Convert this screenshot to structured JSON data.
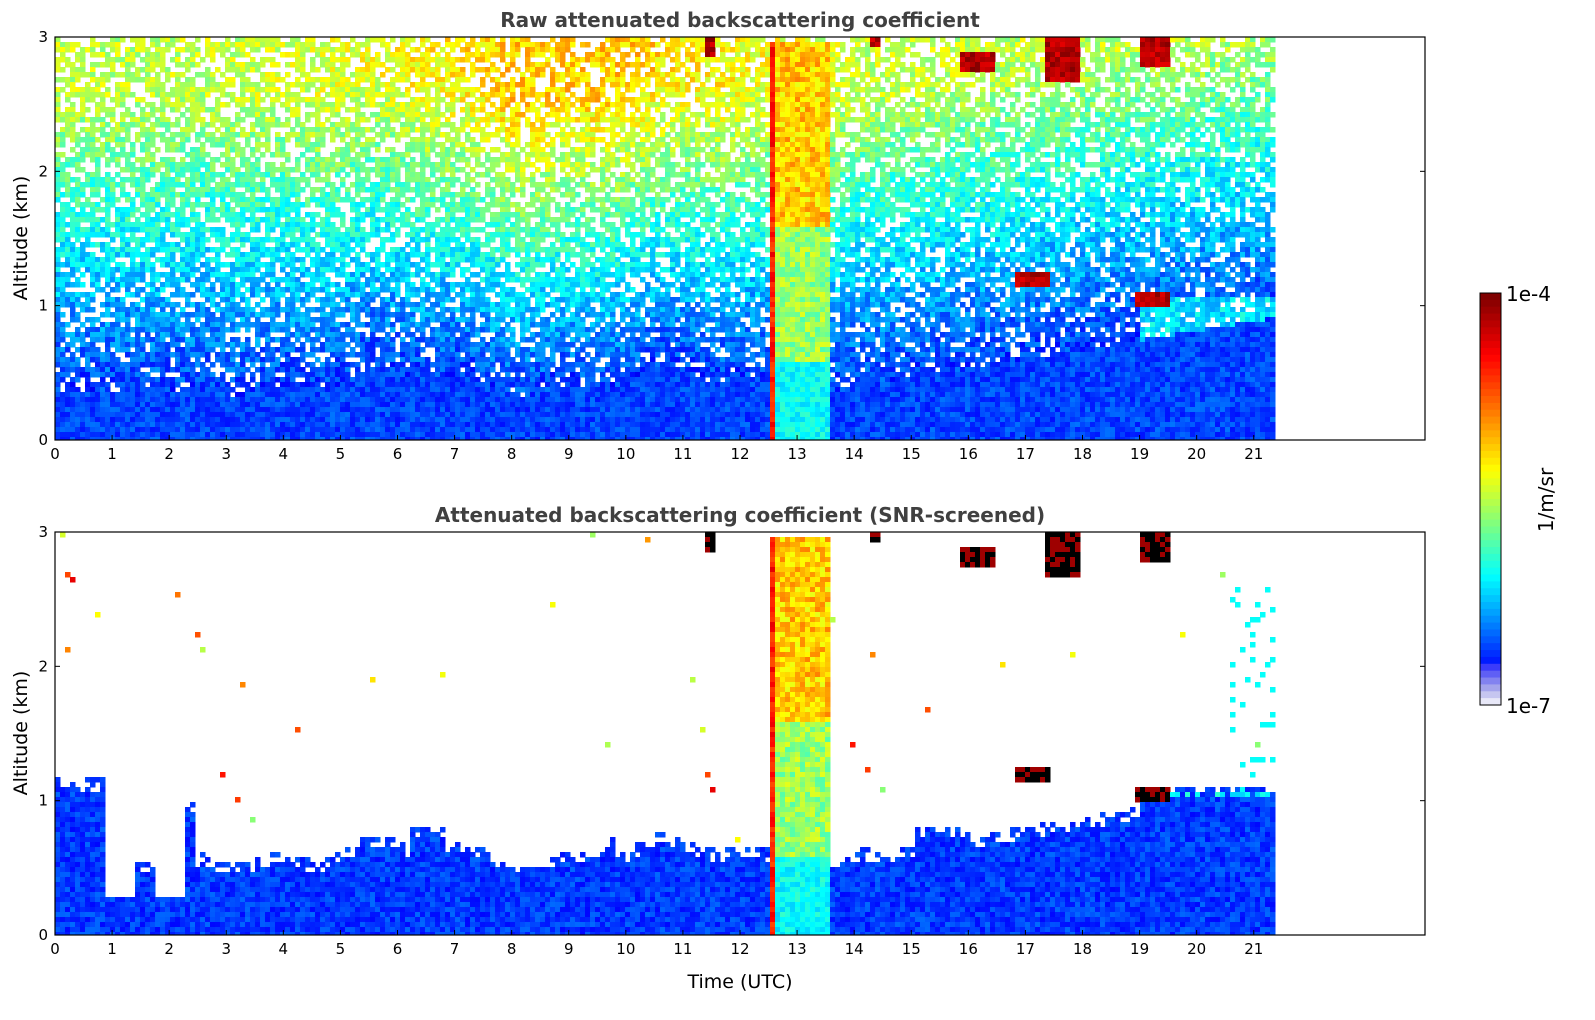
{
  "colors": {
    "jet": [
      "#00007f",
      "#0000ff",
      "#007fff",
      "#00ffff",
      "#7fff7f",
      "#ffff00",
      "#ff7f00",
      "#ff0000",
      "#7f0000"
    ],
    "low_tint": [
      "#e8e8f8",
      "#c6c6f0",
      "#a4a4ec",
      "#8282f0",
      "#5f5ff5",
      "#3b3bfa"
    ]
  },
  "chart_data": [
    {
      "type": "heatmap",
      "title": "Raw attenuated backscattering coefficient",
      "xlabel": "",
      "ylabel": "Altitude (km)",
      "xlim": [
        0,
        24
      ],
      "ylim": [
        0,
        3
      ],
      "data_extent_hours": [
        0,
        21.3
      ],
      "xticks": [
        "0",
        "1",
        "2",
        "3",
        "4",
        "5",
        "6",
        "7",
        "8",
        "9",
        "10",
        "11",
        "12",
        "13",
        "14",
        "15",
        "16",
        "17",
        "18",
        "19",
        "20",
        "21"
      ],
      "yticks": [
        "0",
        "1",
        "2",
        "3"
      ],
      "features": [
        {
          "name": "boundary layer",
          "time": [
            0,
            21.3
          ],
          "top_km": [
            0.3,
            0.6
          ],
          "level": "~1e-6"
        },
        {
          "name": "precipitation / dense plume",
          "time": [
            12.4,
            13.5
          ],
          "altitude": [
            0,
            3
          ],
          "level": "~1e-5 to 5e-5"
        },
        {
          "name": "cloud",
          "time": [
            16.8,
            17.4
          ],
          "altitude": [
            1.15,
            1.25
          ],
          "level": "~1e-4"
        },
        {
          "name": "cloud",
          "time": [
            18.9,
            19.5
          ],
          "altitude": [
            1.0,
            1.1
          ],
          "level": "~1e-4"
        },
        {
          "name": "elevated aerosol layer",
          "time": [
            19.0,
            21.3
          ],
          "altitude": [
            0.7,
            1.1
          ],
          "level": "~3e-6"
        },
        {
          "name": "cirrus",
          "time": [
            17.3,
            17.9
          ],
          "altitude": [
            2.7,
            3.0
          ],
          "level": "~1e-4"
        },
        {
          "name": "cirrus",
          "time": [
            15.8,
            16.4
          ],
          "altitude": [
            2.75,
            2.9
          ],
          "level": "~1e-4"
        },
        {
          "name": "cirrus",
          "time": [
            19.0,
            19.5
          ],
          "altitude": [
            2.8,
            3.0
          ],
          "level": "~1e-4"
        }
      ]
    },
    {
      "type": "heatmap",
      "title": "Attenuated backscattering coefficient (SNR-screened)",
      "xlabel": "Time (UTC)",
      "ylabel": "Altitude (km)",
      "xlim": [
        0,
        24
      ],
      "ylim": [
        0,
        3
      ],
      "data_extent_hours": [
        0,
        21.3
      ],
      "xticks": [
        "0",
        "1",
        "2",
        "3",
        "4",
        "5",
        "6",
        "7",
        "8",
        "9",
        "10",
        "11",
        "12",
        "13",
        "14",
        "15",
        "16",
        "17",
        "18",
        "19",
        "20",
        "21"
      ],
      "yticks": [
        "0",
        "1",
        "2",
        "3"
      ],
      "features": [
        {
          "name": "screened boundary layer",
          "time": [
            0,
            21.3
          ],
          "top_km": [
            0.3,
            1.2
          ],
          "level": "~1e-6"
        },
        {
          "name": "gap",
          "time": [
            0.8,
            1.4
          ],
          "altitude": [
            0.32,
            1.05
          ],
          "level": "screened"
        },
        {
          "name": "gap",
          "time": [
            1.8,
            2.2
          ],
          "altitude": [
            0.32,
            0.95
          ],
          "level": "screened"
        },
        {
          "name": "precipitation / dense plume",
          "time": [
            12.4,
            13.5
          ],
          "altitude": [
            0,
            3
          ],
          "level": "~1e-5 to 5e-5"
        },
        {
          "name": "cloud",
          "time": [
            16.8,
            17.4
          ],
          "altitude": [
            1.15,
            1.25
          ],
          "level": "saturated"
        },
        {
          "name": "cloud",
          "time": [
            18.9,
            19.5
          ],
          "altitude": [
            1.0,
            1.1
          ],
          "level": "saturated"
        },
        {
          "name": "elevated aerosol layer",
          "time": [
            19.0,
            21.3
          ],
          "altitude": [
            0.7,
            1.1
          ],
          "level": "~3e-6"
        }
      ]
    }
  ],
  "colorbar": {
    "scale": "log",
    "range": [
      1e-07,
      0.0001
    ],
    "top_label": "1e-4",
    "bottom_label": "1e-7",
    "title": "1/m/sr"
  }
}
